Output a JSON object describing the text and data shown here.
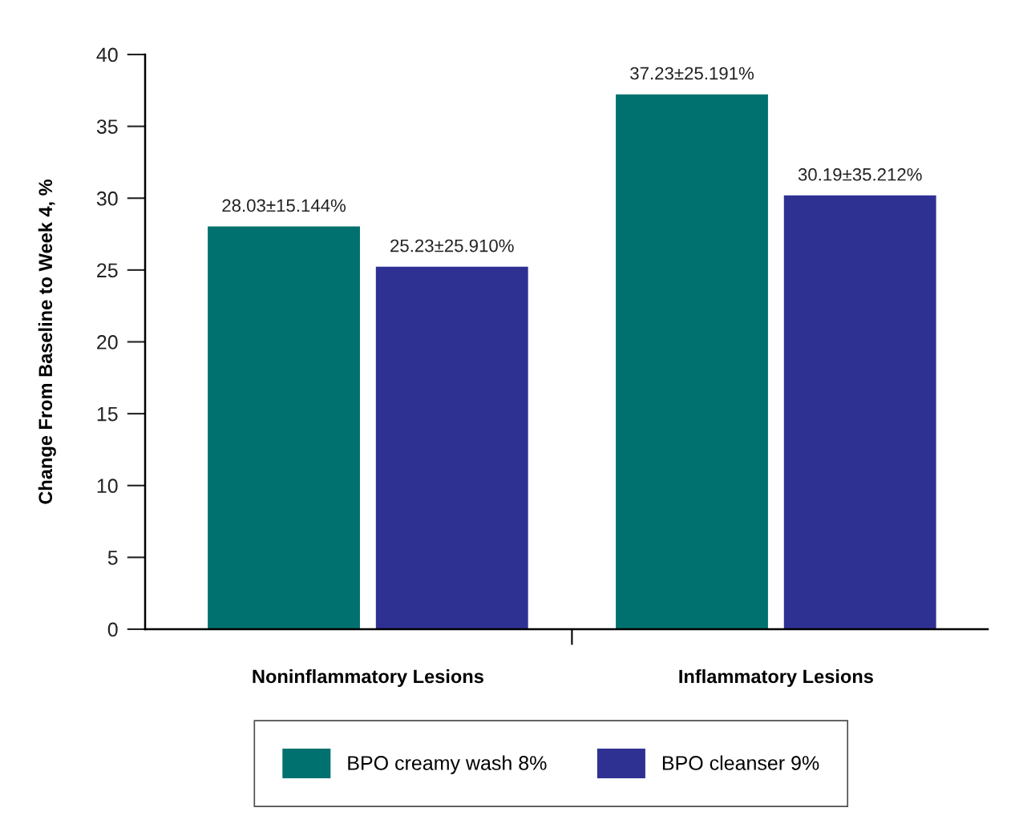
{
  "chart_data": {
    "type": "bar",
    "ylabel": "Change From Baseline to Week 4, %",
    "categories": [
      "Noninflammatory Lesions",
      "Inflammatory Lesions"
    ],
    "series": [
      {
        "name": "BPO creamy wash 8%",
        "color": "#00716e",
        "values": [
          28.03,
          37.23
        ],
        "value_labels": [
          "28.03±15.144%",
          "37.23±25.191%"
        ]
      },
      {
        "name": "BPO cleanser 9%",
        "color": "#2e3192",
        "values": [
          25.23,
          30.19
        ],
        "value_labels": [
          "25.23±25.910%",
          "30.19±35.212%"
        ]
      }
    ],
    "ylim": [
      0,
      40
    ],
    "yticks": [
      0,
      5,
      10,
      15,
      20,
      25,
      30,
      35,
      40
    ],
    "grid": false,
    "legend": "bottom"
  }
}
